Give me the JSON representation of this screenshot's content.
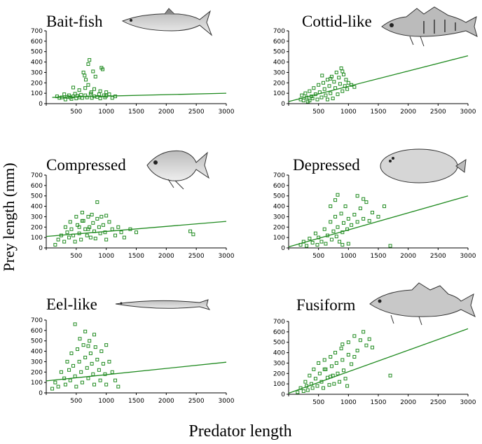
{
  "figure": {
    "ylabel": "Prey length (mm)",
    "xlabel": "Predator length"
  },
  "colors": {
    "points": "#1f8a1f",
    "line": "#1f8a1f",
    "axis": "#000000"
  },
  "chart_data": [
    {
      "type": "scatter",
      "title": "Bait-fish",
      "icon": "herring-fish-icon",
      "xlim": [
        0,
        3000
      ],
      "ylim": [
        0,
        700
      ],
      "xticks": [
        0,
        500,
        1000,
        1500,
        2000,
        2500,
        3000
      ],
      "yticks": [
        0,
        100,
        200,
        300,
        400,
        500,
        600,
        700
      ],
      "fit": {
        "x": [
          100,
          3000
        ],
        "y": [
          60,
          100
        ]
      },
      "points": [
        [
          180,
          70
        ],
        [
          220,
          55
        ],
        [
          260,
          60
        ],
        [
          300,
          90
        ],
        [
          320,
          40
        ],
        [
          350,
          65
        ],
        [
          380,
          80
        ],
        [
          400,
          60
        ],
        [
          420,
          45
        ],
        [
          450,
          70
        ],
        [
          480,
          95
        ],
        [
          500,
          50
        ],
        [
          520,
          75
        ],
        [
          550,
          60
        ],
        [
          580,
          85
        ],
        [
          600,
          55
        ],
        [
          620,
          300
        ],
        [
          640,
          270
        ],
        [
          650,
          80
        ],
        [
          660,
          230
        ],
        [
          680,
          60
        ],
        [
          700,
          380
        ],
        [
          720,
          420
        ],
        [
          740,
          95
        ],
        [
          760,
          55
        ],
        [
          780,
          310
        ],
        [
          800,
          70
        ],
        [
          820,
          260
        ],
        [
          850,
          65
        ],
        [
          880,
          90
        ],
        [
          900,
          50
        ],
        [
          920,
          345
        ],
        [
          940,
          330
        ],
        [
          960,
          80
        ],
        [
          980,
          60
        ],
        [
          1000,
          75
        ],
        [
          1050,
          90
        ],
        [
          1100,
          55
        ],
        [
          1150,
          70
        ],
        [
          450,
          155
        ],
        [
          550,
          130
        ],
        [
          700,
          180
        ],
        [
          800,
          140
        ],
        [
          900,
          120
        ],
        [
          1000,
          110
        ],
        [
          650,
          150
        ],
        [
          750,
          110
        ]
      ]
    },
    {
      "type": "scatter",
      "title": "Cottid-like",
      "icon": "sculpin-fish-icon",
      "xlim": [
        0,
        3000
      ],
      "ylim": [
        0,
        700
      ],
      "xticks": [
        0,
        500,
        1000,
        1500,
        2000,
        2500,
        3000
      ],
      "yticks": [
        0,
        100,
        200,
        300,
        400,
        500,
        600,
        700
      ],
      "fit": {
        "x": [
          0,
          3000
        ],
        "y": [
          20,
          460
        ]
      },
      "points": [
        [
          200,
          40
        ],
        [
          220,
          80
        ],
        [
          250,
          30
        ],
        [
          280,
          100
        ],
        [
          300,
          60
        ],
        [
          320,
          20
        ],
        [
          350,
          120
        ],
        [
          380,
          70
        ],
        [
          400,
          50
        ],
        [
          420,
          150
        ],
        [
          450,
          90
        ],
        [
          480,
          40
        ],
        [
          500,
          180
        ],
        [
          520,
          110
        ],
        [
          550,
          60
        ],
        [
          580,
          200
        ],
        [
          600,
          140
        ],
        [
          620,
          80
        ],
        [
          650,
          230
        ],
        [
          680,
          170
        ],
        [
          700,
          100
        ],
        [
          720,
          260
        ],
        [
          740,
          50
        ],
        [
          760,
          210
        ],
        [
          780,
          150
        ],
        [
          800,
          300
        ],
        [
          820,
          90
        ],
        [
          840,
          250
        ],
        [
          860,
          190
        ],
        [
          880,
          340
        ],
        [
          900,
          120
        ],
        [
          920,
          280
        ],
        [
          940,
          170
        ],
        [
          960,
          230
        ],
        [
          980,
          140
        ],
        [
          1000,
          200
        ],
        [
          1050,
          180
        ],
        [
          1100,
          160
        ],
        [
          560,
          270
        ],
        [
          700,
          240
        ],
        [
          900,
          310
        ],
        [
          350,
          30
        ],
        [
          650,
          40
        ]
      ]
    },
    {
      "type": "scatter",
      "title": "Compressed",
      "icon": "compressed-fish-icon",
      "xlim": [
        0,
        3000
      ],
      "ylim": [
        0,
        700
      ],
      "xticks": [
        0,
        500,
        1000,
        1500,
        2000,
        2500,
        3000
      ],
      "yticks": [
        0,
        100,
        200,
        300,
        400,
        500,
        600,
        700
      ],
      "fit": {
        "x": [
          0,
          3000
        ],
        "y": [
          110,
          255
        ]
      },
      "points": [
        [
          150,
          30
        ],
        [
          200,
          80
        ],
        [
          250,
          120
        ],
        [
          300,
          60
        ],
        [
          320,
          200
        ],
        [
          350,
          150
        ],
        [
          380,
          100
        ],
        [
          400,
          250
        ],
        [
          420,
          180
        ],
        [
          450,
          120
        ],
        [
          480,
          60
        ],
        [
          500,
          300
        ],
        [
          520,
          220
        ],
        [
          550,
          140
        ],
        [
          580,
          80
        ],
        [
          600,
          340
        ],
        [
          620,
          260
        ],
        [
          650,
          180
        ],
        [
          680,
          120
        ],
        [
          700,
          300
        ],
        [
          720,
          200
        ],
        [
          740,
          100
        ],
        [
          760,
          320
        ],
        [
          780,
          240
        ],
        [
          800,
          160
        ],
        [
          820,
          90
        ],
        [
          850,
          280
        ],
        [
          880,
          200
        ],
        [
          900,
          140
        ],
        [
          920,
          300
        ],
        [
          950,
          220
        ],
        [
          980,
          150
        ],
        [
          1000,
          80
        ],
        [
          1050,
          250
        ],
        [
          1100,
          180
        ],
        [
          1150,
          120
        ],
        [
          1200,
          200
        ],
        [
          1250,
          150
        ],
        [
          1300,
          100
        ],
        [
          1400,
          180
        ],
        [
          1500,
          150
        ],
        [
          2400,
          160
        ],
        [
          2450,
          130
        ],
        [
          850,
          440
        ],
        [
          1000,
          310
        ],
        [
          600,
          260
        ],
        [
          700,
          180
        ],
        [
          550,
          200
        ]
      ]
    },
    {
      "type": "scatter",
      "title": "Depressed",
      "icon": "flatfish-icon",
      "xlim": [
        0,
        3000
      ],
      "ylim": [
        0,
        700
      ],
      "xticks": [
        0,
        500,
        1000,
        1500,
        2000,
        2500,
        3000
      ],
      "yticks": [
        0,
        100,
        200,
        300,
        400,
        500,
        600,
        700
      ],
      "fit": {
        "x": [
          0,
          3000
        ],
        "y": [
          10,
          500
        ]
      },
      "points": [
        [
          200,
          30
        ],
        [
          250,
          60
        ],
        [
          300,
          20
        ],
        [
          350,
          90
        ],
        [
          400,
          50
        ],
        [
          450,
          140
        ],
        [
          480,
          30
        ],
        [
          500,
          100
        ],
        [
          550,
          60
        ],
        [
          600,
          180
        ],
        [
          620,
          40
        ],
        [
          650,
          120
        ],
        [
          700,
          250
        ],
        [
          720,
          80
        ],
        [
          750,
          160
        ],
        [
          780,
          300
        ],
        [
          800,
          110
        ],
        [
          820,
          200
        ],
        [
          850,
          60
        ],
        [
          880,
          330
        ],
        [
          900,
          150
        ],
        [
          920,
          240
        ],
        [
          950,
          400
        ],
        [
          980,
          180
        ],
        [
          1000,
          280
        ],
        [
          1050,
          220
        ],
        [
          1100,
          320
        ],
        [
          1150,
          250
        ],
        [
          1200,
          380
        ],
        [
          1250,
          280
        ],
        [
          1300,
          440
        ],
        [
          1350,
          260
        ],
        [
          1400,
          340
        ],
        [
          1500,
          300
        ],
        [
          1600,
          400
        ],
        [
          1700,
          20
        ],
        [
          1150,
          500
        ],
        [
          1250,
          470
        ],
        [
          780,
          460
        ],
        [
          820,
          510
        ],
        [
          700,
          400
        ],
        [
          900,
          30
        ],
        [
          1000,
          40
        ]
      ]
    },
    {
      "type": "scatter",
      "title": "Eel-like",
      "icon": "eel-fish-icon",
      "xlim": [
        0,
        3000
      ],
      "ylim": [
        0,
        700
      ],
      "xticks": [
        0,
        500,
        1000,
        1500,
        2000,
        2500,
        3000
      ],
      "yticks": [
        0,
        100,
        200,
        300,
        400,
        500,
        600,
        700
      ],
      "fit": {
        "x": [
          0,
          3000
        ],
        "y": [
          115,
          295
        ]
      },
      "points": [
        [
          100,
          40
        ],
        [
          150,
          100
        ],
        [
          200,
          60
        ],
        [
          250,
          200
        ],
        [
          300,
          140
        ],
        [
          320,
          80
        ],
        [
          350,
          300
        ],
        [
          380,
          220
        ],
        [
          400,
          120
        ],
        [
          420,
          380
        ],
        [
          450,
          260
        ],
        [
          480,
          160
        ],
        [
          500,
          60
        ],
        [
          520,
          420
        ],
        [
          550,
          300
        ],
        [
          580,
          200
        ],
        [
          600,
          100
        ],
        [
          620,
          460
        ],
        [
          650,
          340
        ],
        [
          680,
          240
        ],
        [
          700,
          140
        ],
        [
          720,
          500
        ],
        [
          740,
          380
        ],
        [
          760,
          280
        ],
        [
          780,
          180
        ],
        [
          800,
          80
        ],
        [
          820,
          440
        ],
        [
          850,
          320
        ],
        [
          880,
          220
        ],
        [
          900,
          120
        ],
        [
          920,
          400
        ],
        [
          950,
          280
        ],
        [
          980,
          180
        ],
        [
          1000,
          80
        ],
        [
          1050,
          300
        ],
        [
          1100,
          200
        ],
        [
          1150,
          120
        ],
        [
          1200,
          60
        ],
        [
          480,
          660
        ],
        [
          650,
          590
        ],
        [
          800,
          560
        ],
        [
          1000,
          460
        ],
        [
          560,
          520
        ],
        [
          700,
          450
        ]
      ]
    },
    {
      "type": "scatter",
      "title": "Fusiform",
      "icon": "fusiform-fish-icon",
      "xlim": [
        0,
        3000
      ],
      "ylim": [
        0,
        700
      ],
      "xticks": [
        0,
        500,
        1000,
        1500,
        2000,
        2500,
        3000
      ],
      "yticks": [
        0,
        100,
        200,
        300,
        400,
        500,
        600,
        700
      ],
      "fit": {
        "x": [
          0,
          3000
        ],
        "y": [
          10,
          630
        ]
      },
      "points": [
        [
          150,
          20
        ],
        [
          200,
          60
        ],
        [
          250,
          30
        ],
        [
          280,
          120
        ],
        [
          300,
          80
        ],
        [
          320,
          40
        ],
        [
          350,
          180
        ],
        [
          380,
          100
        ],
        [
          400,
          60
        ],
        [
          420,
          240
        ],
        [
          450,
          150
        ],
        [
          480,
          80
        ],
        [
          500,
          300
        ],
        [
          520,
          200
        ],
        [
          550,
          120
        ],
        [
          580,
          60
        ],
        [
          600,
          330
        ],
        [
          620,
          240
        ],
        [
          650,
          160
        ],
        [
          680,
          90
        ],
        [
          700,
          360
        ],
        [
          720,
          270
        ],
        [
          740,
          180
        ],
        [
          760,
          100
        ],
        [
          780,
          400
        ],
        [
          800,
          300
        ],
        [
          820,
          200
        ],
        [
          850,
          120
        ],
        [
          880,
          440
        ],
        [
          900,
          330
        ],
        [
          920,
          230
        ],
        [
          950,
          150
        ],
        [
          980,
          80
        ],
        [
          1000,
          380
        ],
        [
          1050,
          290
        ],
        [
          1100,
          360
        ],
        [
          1150,
          420
        ],
        [
          1200,
          520
        ],
        [
          1250,
          600
        ],
        [
          1300,
          470
        ],
        [
          1350,
          530
        ],
        [
          1400,
          450
        ],
        [
          1700,
          180
        ],
        [
          1000,
          500
        ],
        [
          1100,
          560
        ],
        [
          900,
          480
        ],
        [
          600,
          240
        ],
        [
          700,
          170
        ]
      ]
    }
  ]
}
